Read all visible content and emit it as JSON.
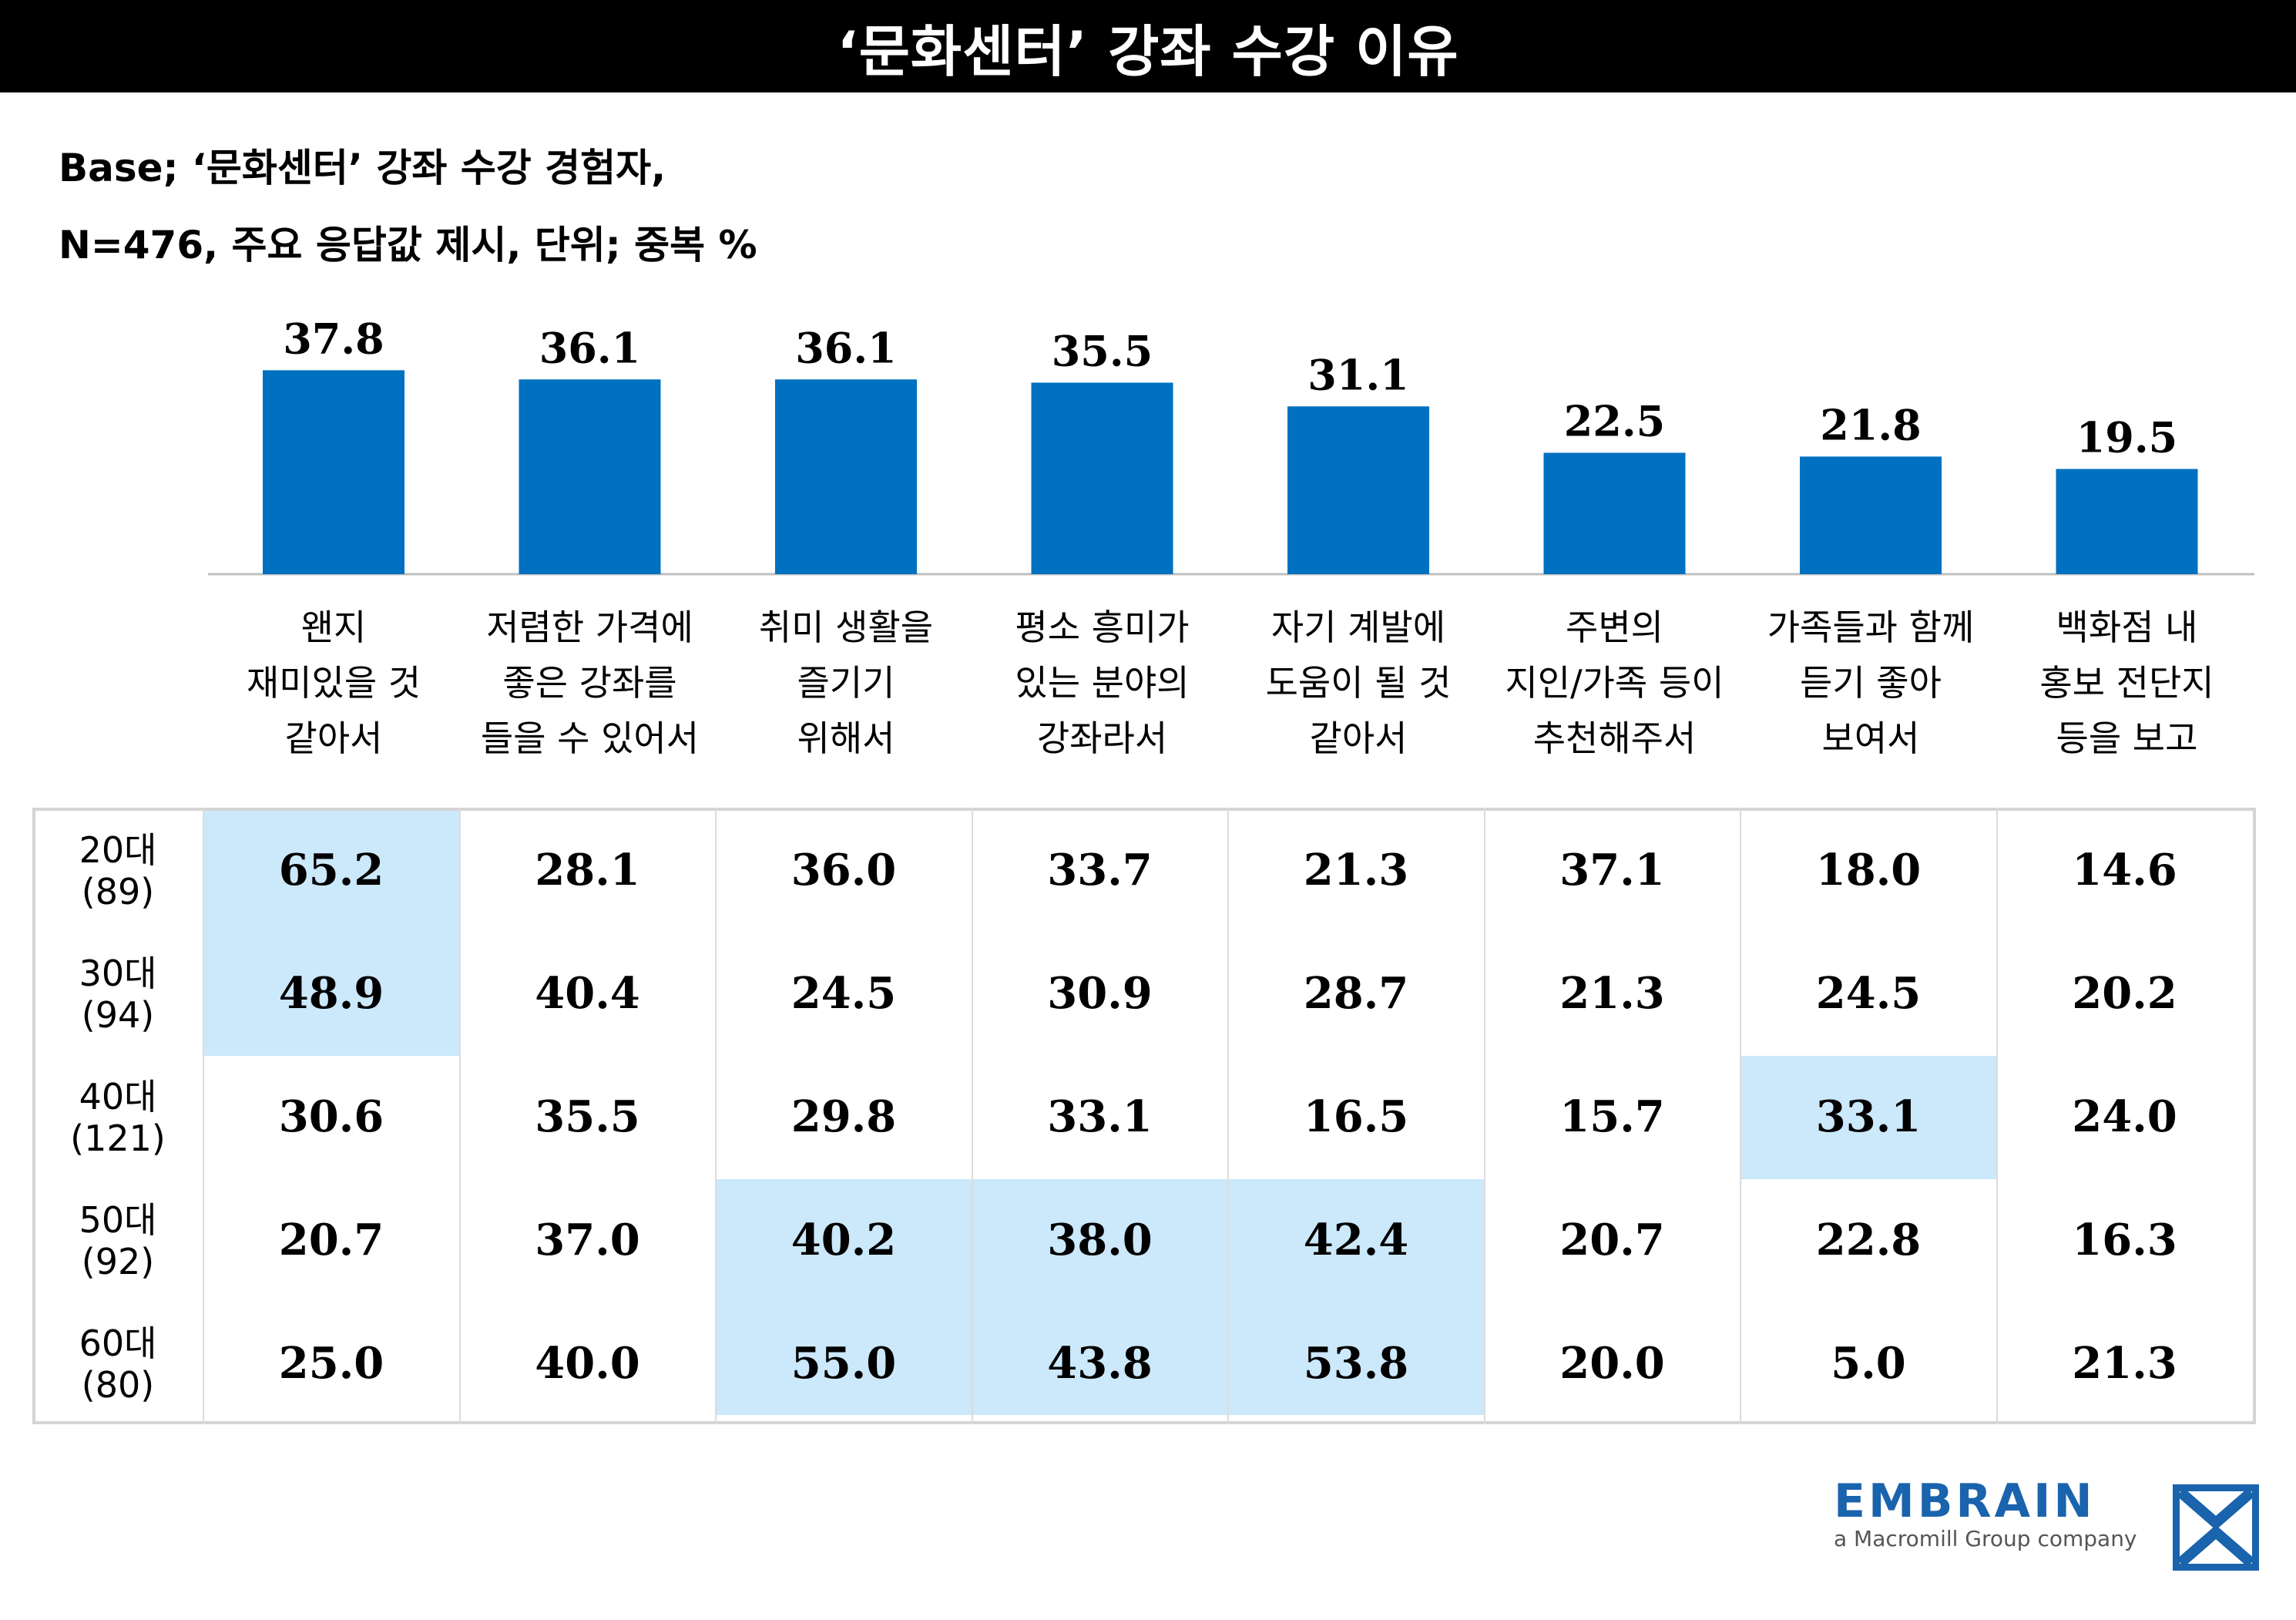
{
  "title": "‘문화센터’ 강좌 수강 이유",
  "base_line1": "Base; ‘문화센터’ 강좌 수강 경험자,",
  "base_line2": "N=476, 주요 응답값 제시, 단위; 중복 %",
  "colors": {
    "bar": "#0070c0",
    "highlight": "#cce8fb"
  },
  "chart_data": {
    "type": "bar",
    "title": "‘문화센터’ 강좌 수강 이유",
    "categories": [
      [
        "왠지",
        "재미있을 것",
        "같아서"
      ],
      [
        "저렴한 가격에",
        "좋은 강좌를",
        "들을 수 있어서"
      ],
      [
        "취미 생활을",
        "즐기기",
        "위해서"
      ],
      [
        "평소 흥미가",
        "있는 분야의",
        "강좌라서"
      ],
      [
        "자기 계발에",
        "도움이 될 것",
        "같아서"
      ],
      [
        "주변의",
        "지인/가족 등이",
        "추천해주서"
      ],
      [
        "가족들과 함께",
        "듣기 좋아",
        "보여서"
      ],
      [
        "백화점 내",
        "홍보 전단지",
        "등을 보고"
      ]
    ],
    "values": [
      "37.8",
      "36.1",
      "36.1",
      "35.5",
      "31.1",
      "22.5",
      "21.8",
      "19.5"
    ],
    "ylim": [
      0,
      40
    ]
  },
  "table": {
    "rows": [
      {
        "label": [
          "20대",
          "(89)"
        ],
        "values": [
          "65.2",
          "28.1",
          "36.0",
          "33.7",
          "21.3",
          "37.1",
          "18.0",
          "14.6"
        ],
        "highlight": [
          0
        ]
      },
      {
        "label": [
          "30대",
          "(94)"
        ],
        "values": [
          "48.9",
          "40.4",
          "24.5",
          "30.9",
          "28.7",
          "21.3",
          "24.5",
          "20.2"
        ],
        "highlight": [
          0
        ]
      },
      {
        "label": [
          "40대",
          "(121)"
        ],
        "values": [
          "30.6",
          "35.5",
          "29.8",
          "33.1",
          "16.5",
          "15.7",
          "33.1",
          "24.0"
        ],
        "highlight": [
          6
        ]
      },
      {
        "label": [
          "50대",
          "(92)"
        ],
        "values": [
          "20.7",
          "37.0",
          "40.2",
          "38.0",
          "42.4",
          "20.7",
          "22.8",
          "16.3"
        ],
        "highlight": [
          2,
          3,
          4
        ]
      },
      {
        "label": [
          "60대",
          "(80)"
        ],
        "values": [
          "25.0",
          "40.0",
          "55.0",
          "43.8",
          "53.8",
          "20.0",
          "5.0",
          "21.3"
        ],
        "highlight": [
          2,
          3,
          4
        ]
      }
    ]
  },
  "logo": {
    "name": "EMBRAIN",
    "tagline": "a Macromill Group company",
    "icon": "embrain-logo-icon"
  }
}
